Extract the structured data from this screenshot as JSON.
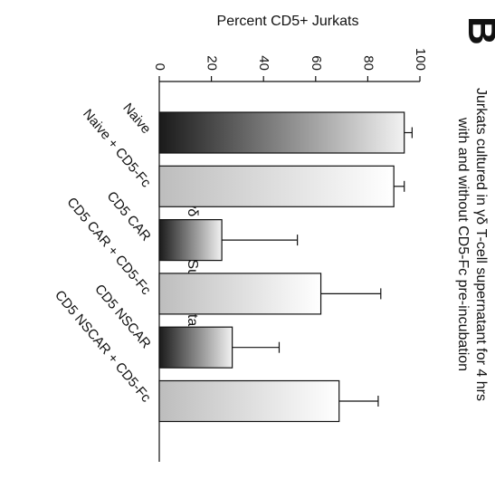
{
  "panel_label": "B",
  "chart_data": {
    "type": "bar",
    "title": "Jurkats cultured in γδ T-cell supernatant for 4 hrs with and without CD5-Fc pre-incubation",
    "title_lines": [
      "Jurkats cultured in γδ T-cell supernatant for 4 hrs",
      "with and without CD5-Fc pre-incubation"
    ],
    "ylabel": "Percent CD5+ Jurkats",
    "xlabel": "γδ T-cell Supernatant",
    "ylim": [
      0,
      100
    ],
    "yticks": [
      0,
      20,
      40,
      60,
      80,
      100
    ],
    "categories": [
      "Naive",
      "Naive + CD5-Fc",
      "CD5 CAR",
      "CD5 CAR + CD5-Fc",
      "CD5 NSCAR",
      "CD5 NSCAR + CD5-Fc"
    ],
    "values": [
      94,
      90,
      24,
      62,
      28,
      69
    ],
    "errors": [
      3,
      4,
      29,
      23,
      18,
      15
    ],
    "fills": [
      "dark-gradient",
      "light-gradient",
      "dark-gradient",
      "light-gradient",
      "dark-gradient",
      "light-gradient"
    ],
    "colors": {
      "dark_start": "#1a1a1a",
      "dark_end": "#f2f2f2",
      "light_start": "#bdbdbd",
      "light_end": "#ffffff",
      "stroke": "#111111"
    },
    "grid": false,
    "legend": "none"
  }
}
